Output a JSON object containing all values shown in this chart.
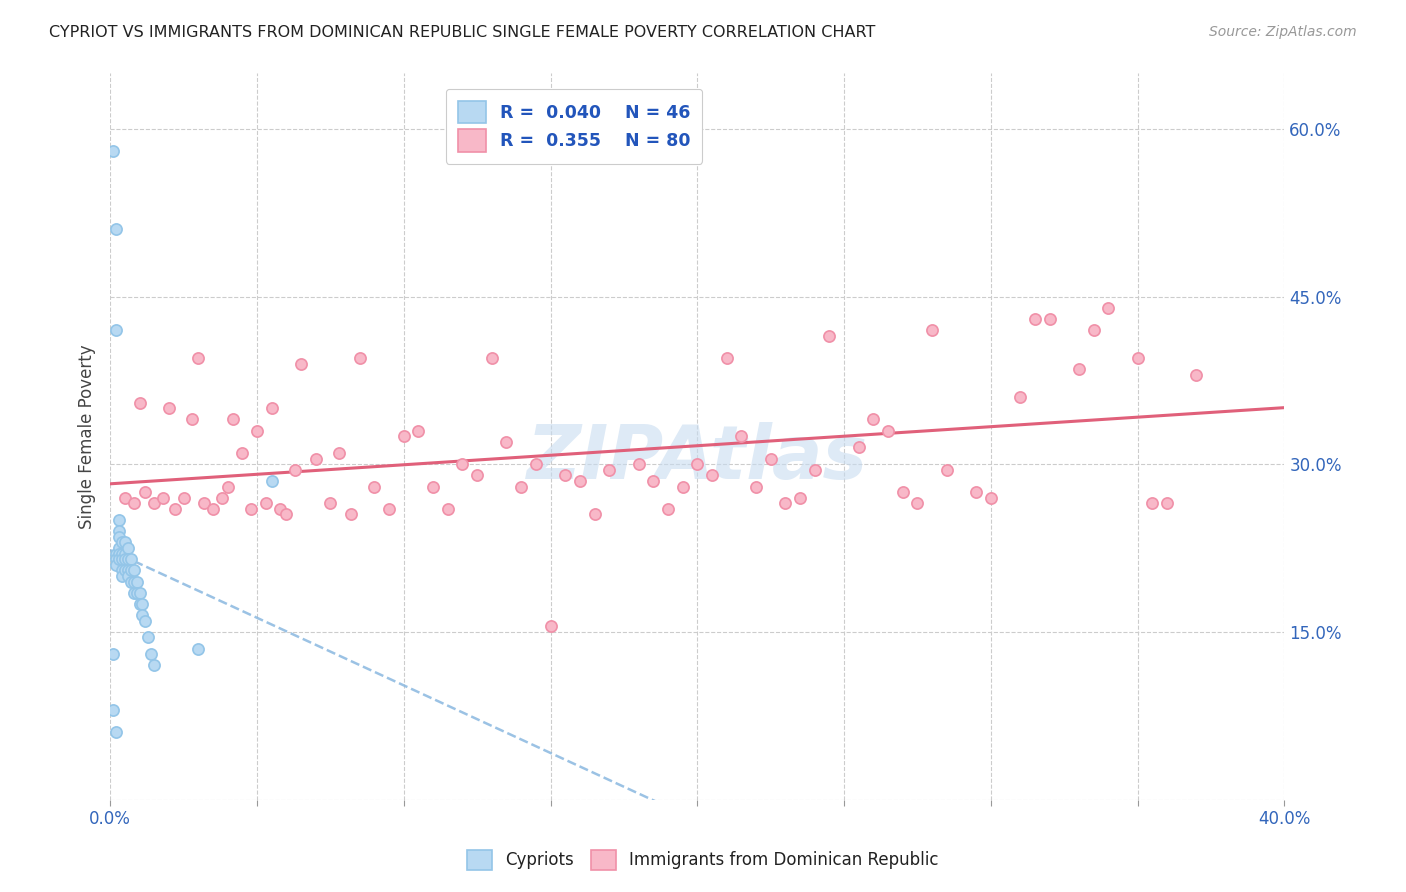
{
  "title": "CYPRIOT VS IMMIGRANTS FROM DOMINICAN REPUBLIC SINGLE FEMALE POVERTY CORRELATION CHART",
  "source": "Source: ZipAtlas.com",
  "ylabel": "Single Female Poverty",
  "xlim": [
    0.0,
    0.4
  ],
  "ylim": [
    0.0,
    0.65
  ],
  "cypriot_color": "#93c5e8",
  "cypriot_fill": "#b8d9f2",
  "immigrant_color": "#f090a8",
  "immigrant_fill": "#f8b8c8",
  "trend_blue_color": "#8ab8e0",
  "trend_pink_color": "#e0607a",
  "watermark_color": "#c8dcf0",
  "cypriot_x": [
    0.001,
    0.002,
    0.002,
    0.002,
    0.002,
    0.002,
    0.003,
    0.003,
    0.003,
    0.003,
    0.003,
    0.003,
    0.004,
    0.004,
    0.004,
    0.004,
    0.004,
    0.005,
    0.005,
    0.005,
    0.005,
    0.006,
    0.006,
    0.006,
    0.006,
    0.007,
    0.007,
    0.007,
    0.008,
    0.008,
    0.008,
    0.009,
    0.009,
    0.01,
    0.01,
    0.011,
    0.011,
    0.012,
    0.013,
    0.014,
    0.015,
    0.001,
    0.001,
    0.002,
    0.03,
    0.055
  ],
  "cypriot_y": [
    0.58,
    0.51,
    0.42,
    0.22,
    0.215,
    0.21,
    0.25,
    0.24,
    0.235,
    0.225,
    0.22,
    0.215,
    0.23,
    0.22,
    0.215,
    0.205,
    0.2,
    0.23,
    0.22,
    0.215,
    0.205,
    0.225,
    0.215,
    0.205,
    0.2,
    0.215,
    0.205,
    0.195,
    0.205,
    0.195,
    0.185,
    0.195,
    0.185,
    0.185,
    0.175,
    0.175,
    0.165,
    0.16,
    0.145,
    0.13,
    0.12,
    0.13,
    0.08,
    0.06,
    0.135,
    0.285
  ],
  "immigrant_x": [
    0.005,
    0.008,
    0.01,
    0.012,
    0.015,
    0.018,
    0.02,
    0.022,
    0.025,
    0.028,
    0.03,
    0.032,
    0.035,
    0.038,
    0.04,
    0.042,
    0.045,
    0.048,
    0.05,
    0.053,
    0.055,
    0.058,
    0.06,
    0.063,
    0.065,
    0.07,
    0.075,
    0.078,
    0.082,
    0.085,
    0.09,
    0.095,
    0.1,
    0.105,
    0.11,
    0.115,
    0.12,
    0.125,
    0.13,
    0.135,
    0.14,
    0.145,
    0.15,
    0.155,
    0.16,
    0.165,
    0.17,
    0.18,
    0.185,
    0.19,
    0.195,
    0.2,
    0.205,
    0.21,
    0.215,
    0.22,
    0.225,
    0.23,
    0.235,
    0.24,
    0.245,
    0.255,
    0.26,
    0.265,
    0.27,
    0.275,
    0.28,
    0.285,
    0.295,
    0.3,
    0.31,
    0.315,
    0.32,
    0.33,
    0.335,
    0.34,
    0.35,
    0.355,
    0.36,
    0.37
  ],
  "immigrant_y": [
    0.27,
    0.265,
    0.355,
    0.275,
    0.265,
    0.27,
    0.35,
    0.26,
    0.27,
    0.34,
    0.395,
    0.265,
    0.26,
    0.27,
    0.28,
    0.34,
    0.31,
    0.26,
    0.33,
    0.265,
    0.35,
    0.26,
    0.255,
    0.295,
    0.39,
    0.305,
    0.265,
    0.31,
    0.255,
    0.395,
    0.28,
    0.26,
    0.325,
    0.33,
    0.28,
    0.26,
    0.3,
    0.29,
    0.395,
    0.32,
    0.28,
    0.3,
    0.155,
    0.29,
    0.285,
    0.255,
    0.295,
    0.3,
    0.285,
    0.26,
    0.28,
    0.3,
    0.29,
    0.395,
    0.325,
    0.28,
    0.305,
    0.265,
    0.27,
    0.295,
    0.415,
    0.315,
    0.34,
    0.33,
    0.275,
    0.265,
    0.42,
    0.295,
    0.275,
    0.27,
    0.36,
    0.43,
    0.43,
    0.385,
    0.42,
    0.44,
    0.395,
    0.265,
    0.265,
    0.38
  ]
}
